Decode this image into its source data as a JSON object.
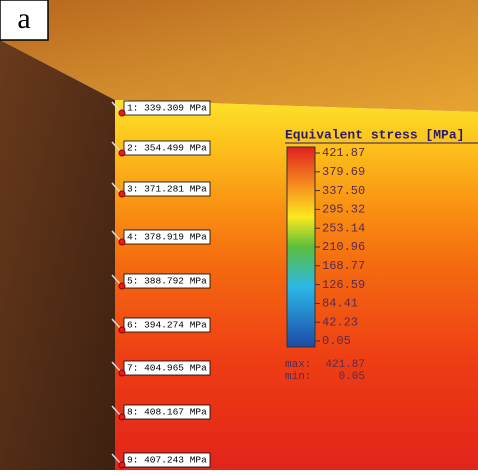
{
  "panel_label": "a",
  "probes": [
    "1: 339.309 MPa",
    "2: 354.499 MPa",
    "3: 371.281 MPa",
    "4: 378.919 MPa",
    "5: 388.792 MPa",
    "6: 394.274 MPa",
    "7: 404.965 MPa",
    "8: 408.167 MPa",
    "9: 407.243 MPa"
  ],
  "legend": {
    "title": "Equivalent stress [MPa]",
    "ticks": [
      "421.87",
      "379.69",
      "337.50",
      "295.32",
      "253.14",
      "210.96",
      "168.77",
      "126.59",
      "84.41",
      "42.23",
      "0.05"
    ],
    "max_label": "max:",
    "max_value": "421.87",
    "min_label": "min:",
    "min_value": "0.05"
  }
}
